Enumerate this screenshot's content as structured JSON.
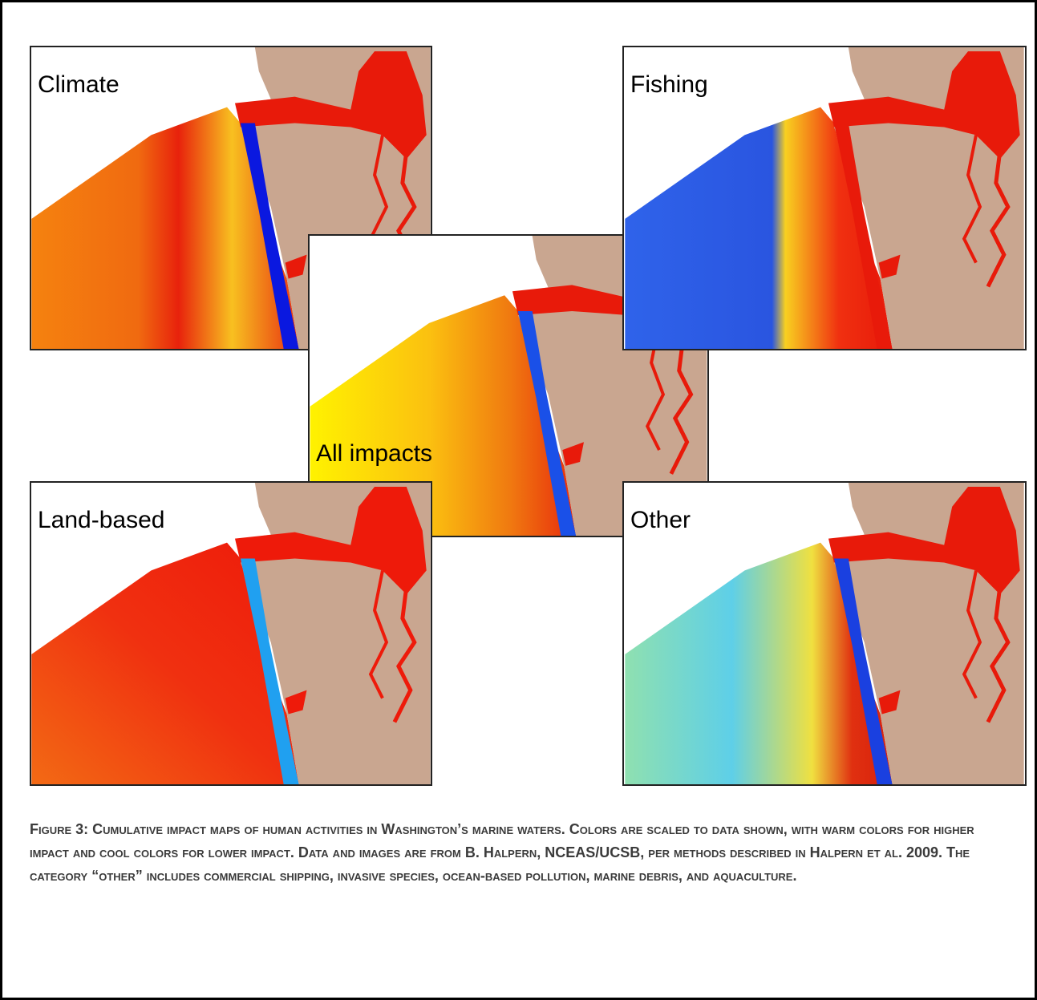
{
  "panels": [
    {
      "label": "Climate"
    },
    {
      "label": "Fishing"
    },
    {
      "label": "All impacts"
    },
    {
      "label": "Land-based"
    },
    {
      "label": "Other"
    }
  ],
  "caption": "Figure 3: Cumulative impact maps of human activities in Washington’s marine waters. Colors are scaled to data shown, with warm colors for higher impact and cool colors for lower impact. Data and images are from B. Halpern, NCEAS/UCSB, per methods described in Halpern et al. 2009. The category “other” includes commercial shipping, invasive species, ocean-based pollution, marine debris, and aquaculture."
}
